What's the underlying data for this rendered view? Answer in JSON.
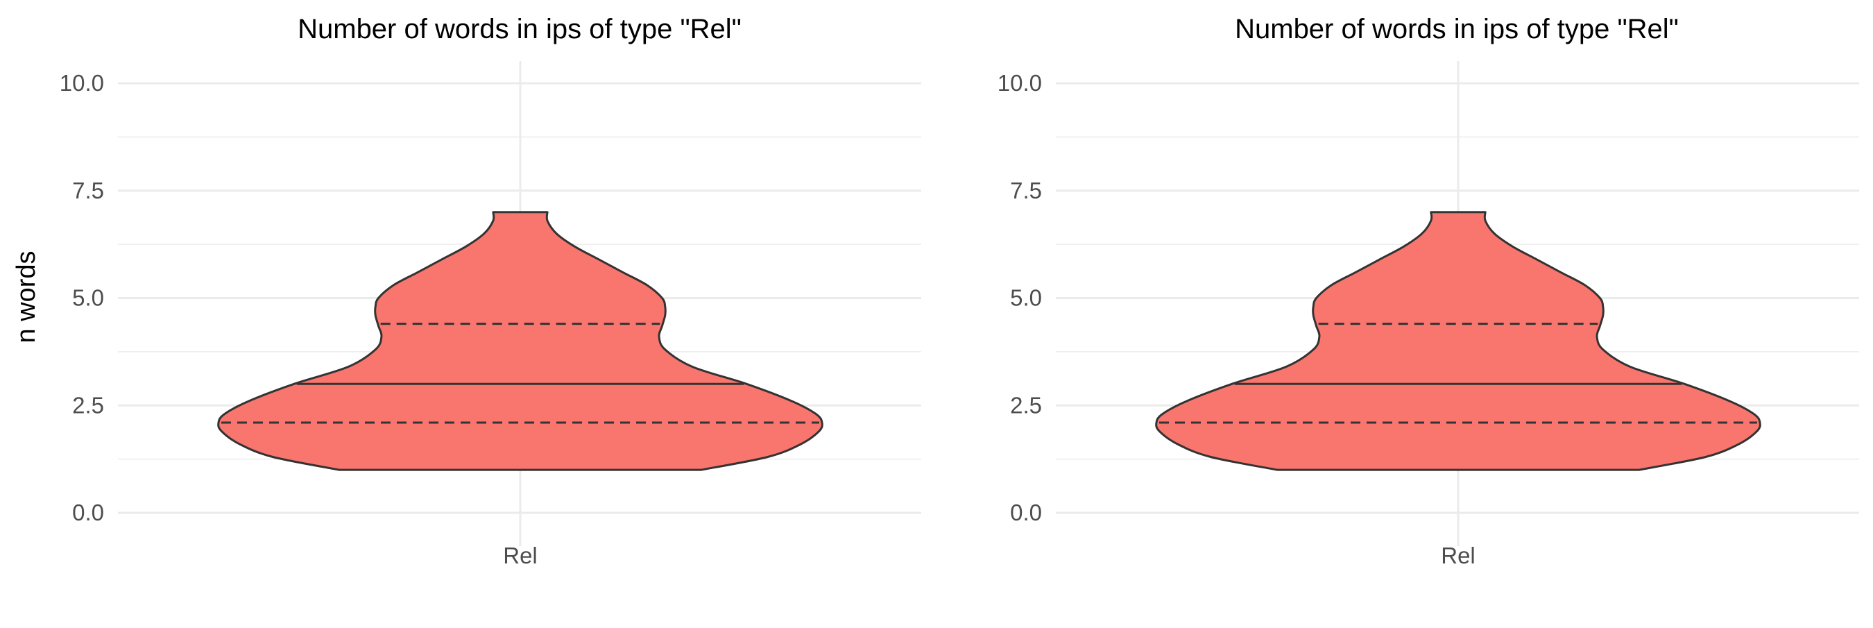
{
  "chart_data": [
    {
      "type": "violin",
      "title": "Number of words in ips of type \"Rel\"",
      "ylabel": "n words",
      "xlabel": "",
      "categories": [
        "Rel"
      ],
      "ylim": [
        0,
        10
      ],
      "yticks": [
        "0.0",
        "2.5",
        "5.0",
        "7.5",
        "10.0"
      ],
      "grid": true,
      "fill_color": "#F8766D",
      "outline_color": "#333333",
      "data_range": [
        1,
        7
      ],
      "quantiles": {
        "q25": 2.1,
        "median": 3.0,
        "q75": 4.4
      },
      "density_profile": [
        {
          "y": 1.0,
          "width": 0.6
        },
        {
          "y": 1.3,
          "width": 0.82
        },
        {
          "y": 1.6,
          "width": 0.93
        },
        {
          "y": 1.9,
          "width": 0.99
        },
        {
          "y": 2.1,
          "width": 1.0
        },
        {
          "y": 2.3,
          "width": 0.98
        },
        {
          "y": 2.6,
          "width": 0.9
        },
        {
          "y": 3.0,
          "width": 0.75
        },
        {
          "y": 3.4,
          "width": 0.57
        },
        {
          "y": 3.8,
          "width": 0.48
        },
        {
          "y": 4.1,
          "width": 0.46
        },
        {
          "y": 4.35,
          "width": 0.47
        },
        {
          "y": 4.6,
          "width": 0.48
        },
        {
          "y": 4.8,
          "width": 0.48
        },
        {
          "y": 5.0,
          "width": 0.47
        },
        {
          "y": 5.3,
          "width": 0.42
        },
        {
          "y": 5.6,
          "width": 0.34
        },
        {
          "y": 5.9,
          "width": 0.26
        },
        {
          "y": 6.2,
          "width": 0.18
        },
        {
          "y": 6.5,
          "width": 0.12
        },
        {
          "y": 6.8,
          "width": 0.09
        },
        {
          "y": 7.0,
          "width": 0.09
        }
      ]
    },
    {
      "type": "violin",
      "title": "Number of words in ips of type \"Rel\"",
      "ylabel": "",
      "xlabel": "",
      "categories": [
        "Rel"
      ],
      "ylim": [
        0,
        10
      ],
      "yticks": [
        "0.0",
        "2.5",
        "5.0",
        "7.5",
        "10.0"
      ],
      "grid": true,
      "fill_color": "#F8766D",
      "outline_color": "#333333",
      "data_range": [
        1,
        7
      ],
      "quantiles": {
        "q25": 2.1,
        "median": 3.0,
        "q75": 4.4
      },
      "density_profile": [
        {
          "y": 1.0,
          "width": 0.6
        },
        {
          "y": 1.3,
          "width": 0.82
        },
        {
          "y": 1.6,
          "width": 0.93
        },
        {
          "y": 1.9,
          "width": 0.99
        },
        {
          "y": 2.1,
          "width": 1.0
        },
        {
          "y": 2.3,
          "width": 0.98
        },
        {
          "y": 2.6,
          "width": 0.9
        },
        {
          "y": 3.0,
          "width": 0.75
        },
        {
          "y": 3.4,
          "width": 0.57
        },
        {
          "y": 3.8,
          "width": 0.48
        },
        {
          "y": 4.1,
          "width": 0.46
        },
        {
          "y": 4.35,
          "width": 0.47
        },
        {
          "y": 4.6,
          "width": 0.48
        },
        {
          "y": 4.8,
          "width": 0.48
        },
        {
          "y": 5.0,
          "width": 0.47
        },
        {
          "y": 5.3,
          "width": 0.42
        },
        {
          "y": 5.6,
          "width": 0.34
        },
        {
          "y": 5.9,
          "width": 0.26
        },
        {
          "y": 6.2,
          "width": 0.18
        },
        {
          "y": 6.5,
          "width": 0.12
        },
        {
          "y": 6.8,
          "width": 0.09
        },
        {
          "y": 7.0,
          "width": 0.09
        }
      ]
    }
  ]
}
